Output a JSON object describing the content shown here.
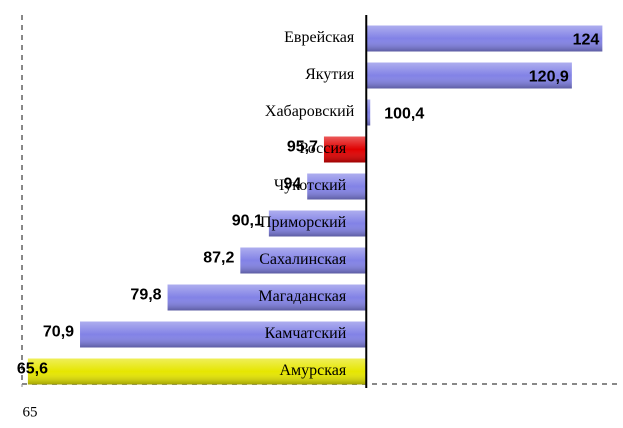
{
  "chart_data": {
    "type": "hbar",
    "categories": [
      "Еврейская",
      "Якутия",
      "Хабаровский",
      "Россия",
      "Чукотский",
      "Приморский",
      "Сахалинская",
      "Магаданская",
      "Камчатский",
      "Амурская"
    ],
    "values": [
      124,
      120.9,
      100.4,
      95.7,
      94,
      90.1,
      87.2,
      79.8,
      70.9,
      65.6
    ],
    "value_labels": [
      "124",
      "120,9",
      "100,4",
      "95,7",
      "94",
      "90,1",
      "87,2",
      "79,8",
      "70,9",
      "65,6"
    ],
    "colors": [
      "#8282e6",
      "#8282e6",
      "#8282e6",
      "#e00000",
      "#8282e6",
      "#8282e6",
      "#8282e6",
      "#8282e6",
      "#8282e6",
      "#e6e600"
    ],
    "base": 100,
    "xlim": [
      65,
      126
    ],
    "xticks": [
      65
    ]
  }
}
